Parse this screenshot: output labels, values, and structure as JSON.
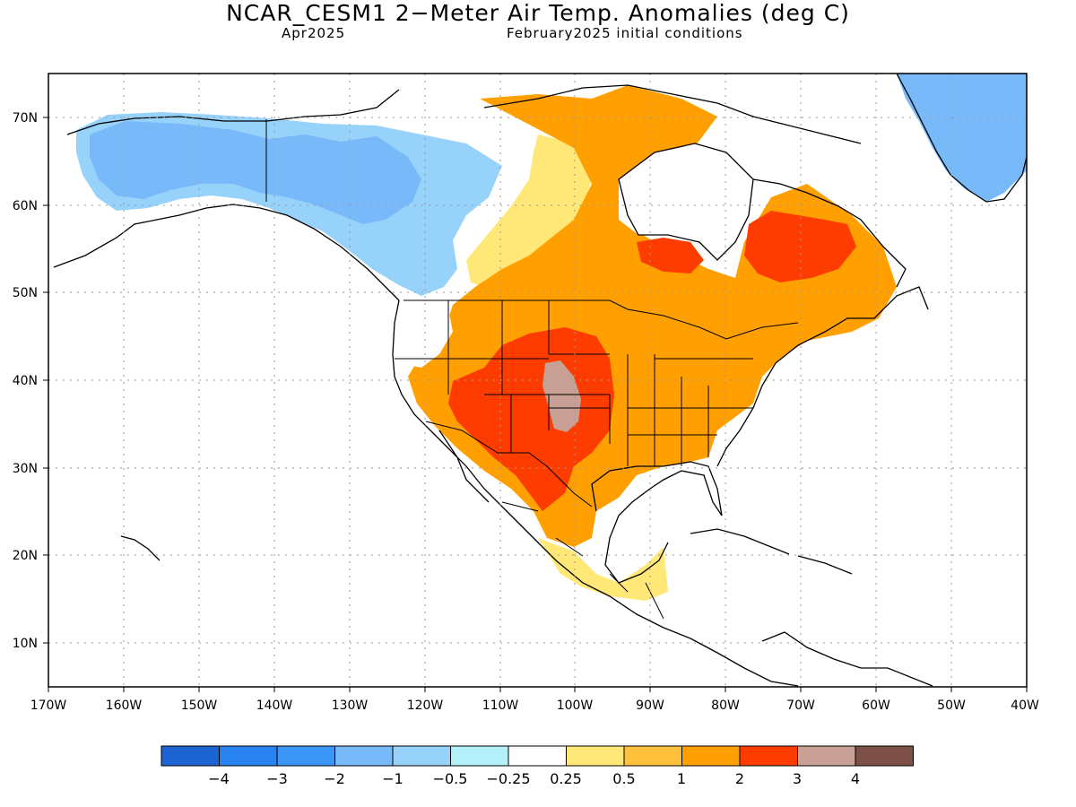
{
  "header": {
    "title": "NCAR_CESM1 2−Meter Air Temp. Anomalies (deg C)",
    "valid_month": "Apr2025",
    "init": "February2025 initial conditions"
  },
  "map": {
    "projection": "cylindrical equidistant",
    "lon_range": [
      -170,
      -40
    ],
    "lat_range": [
      5,
      75
    ],
    "lon_ticks": [
      "170W",
      "160W",
      "150W",
      "140W",
      "130W",
      "120W",
      "110W",
      "100W",
      "90W",
      "80W",
      "70W",
      "60W",
      "50W",
      "40W"
    ],
    "lat_ticks": [
      "10N",
      "20N",
      "30N",
      "40N",
      "50N",
      "60N",
      "70N"
    ],
    "gridlines": "dotted"
  },
  "colorbar": {
    "labels": [
      "−4",
      "−3",
      "−2",
      "−1",
      "−0.5",
      "−0.25",
      "0.25",
      "0.5",
      "1",
      "2",
      "3",
      "4"
    ],
    "colors": [
      "#1c64d2",
      "#2882f0",
      "#3c96f5",
      "#78b9fa",
      "#96d2fa",
      "#b4f0fa",
      "#ffffff",
      "#ffe878",
      "#ffc03c",
      "#ffa000",
      "#ff3c00",
      "#c8a096",
      "#7c5046"
    ]
  },
  "regions": [
    {
      "name": "alaska-western-canada",
      "anomaly_class": "-1",
      "color": "#96d2fa"
    },
    {
      "name": "interior-alaska",
      "anomaly_class": "-2",
      "color": "#78b9fa"
    },
    {
      "name": "greenland",
      "anomaly_class": "-2",
      "color": "#78b9fa"
    },
    {
      "name": "great-plains",
      "anomaly_class": "2 to 3",
      "color": "#ff3c00"
    },
    {
      "name": "eastern-us",
      "anomaly_class": "1 to 2",
      "color": "#ffa000"
    },
    {
      "name": "central-canada",
      "anomaly_class": "1 to 2",
      "color": "#ffa000"
    },
    {
      "name": "quebec",
      "anomaly_class": "2 to 3",
      "color": "#ff3c00"
    },
    {
      "name": "colorado-kansas-core",
      "anomaly_class": "3 to 4",
      "color": "#c8a096"
    }
  ]
}
